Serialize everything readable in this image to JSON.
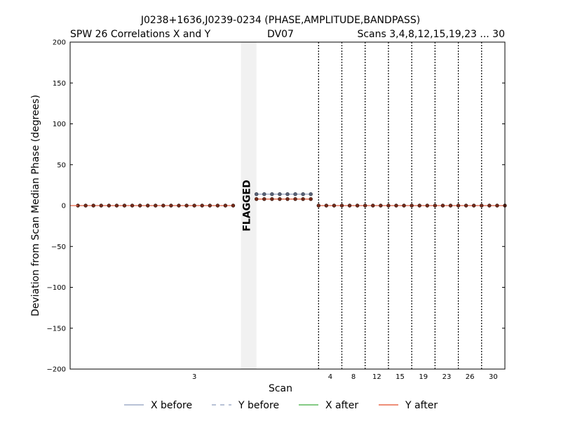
{
  "chart_data": {
    "type": "line",
    "title": "J0238+1636,J0239-0234 (PHASE,AMPLITUDE,BANDPASS)",
    "subtitle_left": "SPW 26 Correlations X and Y",
    "subtitle_center": "DV07",
    "subtitle_right": "Scans 3,4,8,12,15,19,23 ... 30",
    "xlabel": "Scan",
    "ylabel": "Deviation from Scan Median Phase (degrees)",
    "ylim": [
      -200,
      200
    ],
    "yticks": [
      200,
      150,
      100,
      50,
      0,
      -50,
      -100,
      -150,
      -200
    ],
    "ytick_labels": [
      "200",
      "150",
      "100",
      "50",
      "0",
      "−50",
      "−100",
      "−150",
      "−200"
    ],
    "grid": false,
    "scans": [
      {
        "label": "3",
        "start": 0,
        "end": 32
      },
      {
        "label": "4",
        "start": 32,
        "end": 35
      },
      {
        "label": "8",
        "start": 35,
        "end": 38
      },
      {
        "label": "12",
        "start": 38,
        "end": 41
      },
      {
        "label": "15",
        "start": 41,
        "end": 44
      },
      {
        "label": "19",
        "start": 44,
        "end": 47
      },
      {
        "label": "23",
        "start": 47,
        "end": 50
      },
      {
        "label": "26",
        "start": 50,
        "end": 53
      },
      {
        "label": "30",
        "start": 53,
        "end": 56
      }
    ],
    "x_range": [
      0,
      56
    ],
    "flagged": {
      "label": "FLAGGED",
      "start": 22,
      "end": 24
    },
    "points": [
      {
        "from": 1,
        "to": 21,
        "value": 0
      },
      {
        "from": 24,
        "to": 31,
        "value": 8
      },
      {
        "from": 32,
        "to": 56,
        "value": 0
      }
    ],
    "upper_points": [
      {
        "from": 24,
        "to": 31,
        "value": 14
      }
    ],
    "series": [
      {
        "name": "X before",
        "color": "#a0aec8",
        "dash": "solid"
      },
      {
        "name": "Y before",
        "color": "#a0aec8",
        "dash": "dashed"
      },
      {
        "name": "X after",
        "color": "#5cb85c",
        "dash": "solid"
      },
      {
        "name": "Y after",
        "color": "#e8684a",
        "dash": "solid"
      }
    ],
    "legend_position": "bottom"
  }
}
